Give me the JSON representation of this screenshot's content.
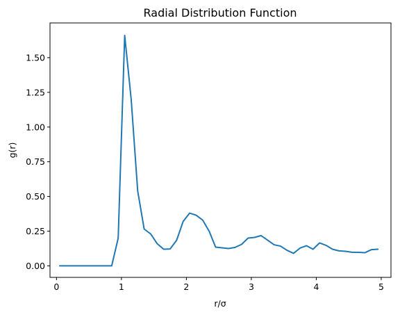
{
  "chart_data": {
    "type": "line",
    "title": "Radial Distribution Function",
    "xlabel": "r/σ",
    "ylabel": "g(r)",
    "xlim": [
      -0.1,
      5.15
    ],
    "ylim": [
      -0.083,
      1.75
    ],
    "grid": false,
    "legend": "none",
    "x_ticks": [
      0,
      1,
      2,
      3,
      4,
      5
    ],
    "x_tick_labels": [
      "0",
      "1",
      "2",
      "3",
      "4",
      "5"
    ],
    "y_ticks": [
      0.0,
      0.25,
      0.5,
      0.75,
      1.0,
      1.25,
      1.5
    ],
    "y_tick_labels": [
      "0.00",
      "0.25",
      "0.50",
      "0.75",
      "1.00",
      "1.25",
      "1.50"
    ],
    "series": [
      {
        "color": "#1f77b4",
        "x": [
          0.05,
          0.15,
          0.25,
          0.35,
          0.45,
          0.55,
          0.65,
          0.75,
          0.85,
          0.95,
          1.05,
          1.15,
          1.25,
          1.35,
          1.45,
          1.55,
          1.65,
          1.75,
          1.85,
          1.95,
          2.05,
          2.15,
          2.25,
          2.35,
          2.45,
          2.55,
          2.65,
          2.75,
          2.85,
          2.95,
          3.05,
          3.15,
          3.25,
          3.35,
          3.45,
          3.55,
          3.65,
          3.75,
          3.85,
          3.95,
          4.05,
          4.15,
          4.25,
          4.35,
          4.45,
          4.55,
          4.65,
          4.75,
          4.85,
          4.95
        ],
        "y": [
          0.0,
          0.0,
          0.0,
          0.0,
          0.0,
          0.0,
          0.0,
          0.0,
          0.0,
          0.2,
          1.66,
          1.2,
          0.54,
          0.265,
          0.23,
          0.16,
          0.12,
          0.122,
          0.185,
          0.32,
          0.38,
          0.365,
          0.33,
          0.25,
          0.135,
          0.13,
          0.125,
          0.133,
          0.155,
          0.2,
          0.205,
          0.218,
          0.185,
          0.152,
          0.142,
          0.112,
          0.09,
          0.128,
          0.145,
          0.12,
          0.165,
          0.148,
          0.12,
          0.108,
          0.105,
          0.098,
          0.097,
          0.095,
          0.117,
          0.12
        ]
      }
    ]
  }
}
